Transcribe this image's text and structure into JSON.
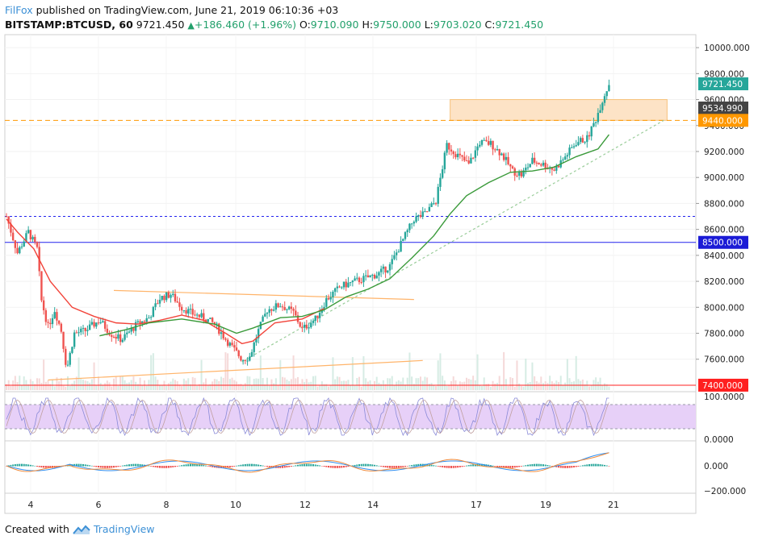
{
  "header": {
    "brand": "FilFox",
    "published": "published on TradingView.com, June 21, 2019 06:10:36 +03",
    "symbol": "BITSTAMP:BTCUSD, 60",
    "last": "9721.450",
    "change": "+186.460 (+1.96%)",
    "o_label": "O:",
    "o_value": "9710.090",
    "h_label": "H:",
    "h_value": "9750.000",
    "l_label": "L:",
    "l_value": "9703.020",
    "c_label": "C:",
    "c_value": "9721.450"
  },
  "footer": {
    "created_with": "Created with",
    "tradingview": "TradingView"
  },
  "colors": {
    "up": "#26a69a",
    "down": "#ef5350",
    "ma_red": "#f2443a",
    "ma_green": "#3a9a3a",
    "resistance_zone": "#fde3c6",
    "orange": "#ff9800",
    "blue_line": "#2222ee",
    "red_line": "#ff2a2a",
    "rsi_band": "#e7d0f8",
    "macd_blue": "#2f8ef0",
    "macd_orange": "#f08a3a"
  },
  "chart_data": {
    "type": "candlestick",
    "ylim": [
      7350,
      10100
    ],
    "y_ticks": [
      "10000.000",
      "9800.000",
      "9600.000",
      "9400.000",
      "9200.000",
      "9000.000",
      "8800.000",
      "8600.000",
      "8400.000",
      "8200.000",
      "8000.000",
      "7800.000",
      "7600.000"
    ],
    "x_ticks": [
      "4",
      "6",
      "8",
      "10",
      "12",
      "14",
      "17",
      "19",
      "21"
    ],
    "price_labels": [
      {
        "text": "9721.450",
        "value": 9721.45,
        "color": "#26a69a"
      },
      {
        "text": "9534.990",
        "value": 9534.99,
        "color": "#444444"
      },
      {
        "text": "9440.000",
        "value": 9440,
        "color": "#ff9800"
      },
      {
        "text": "8500.000",
        "value": 8500,
        "color": "#1b1bd6"
      },
      {
        "text": "7400.000",
        "value": 7400,
        "color": "#ff2020"
      }
    ],
    "ohlc_anchors": [
      [
        0,
        8700
      ],
      [
        10,
        8420
      ],
      [
        20,
        8580
      ],
      [
        28,
        8450
      ],
      [
        32,
        8050
      ],
      [
        38,
        7850
      ],
      [
        44,
        7980
      ],
      [
        50,
        7820
      ],
      [
        55,
        7520
      ],
      [
        62,
        7800
      ],
      [
        72,
        7820
      ],
      [
        85,
        7900
      ],
      [
        95,
        7800
      ],
      [
        105,
        7750
      ],
      [
        118,
        7860
      ],
      [
        130,
        7920
      ],
      [
        140,
        8070
      ],
      [
        150,
        8100
      ],
      [
        160,
        8000
      ],
      [
        170,
        7950
      ],
      [
        180,
        7920
      ],
      [
        190,
        7870
      ],
      [
        205,
        7700
      ],
      [
        215,
        7600
      ],
      [
        222,
        7620
      ],
      [
        230,
        7820
      ],
      [
        238,
        7980
      ],
      [
        250,
        8020
      ],
      [
        262,
        7960
      ],
      [
        270,
        7830
      ],
      [
        282,
        7910
      ],
      [
        292,
        8060
      ],
      [
        305,
        8160
      ],
      [
        318,
        8200
      ],
      [
        330,
        8230
      ],
      [
        340,
        8260
      ],
      [
        350,
        8320
      ],
      [
        362,
        8520
      ],
      [
        372,
        8680
      ],
      [
        382,
        8720
      ],
      [
        392,
        8820
      ],
      [
        402,
        9250
      ],
      [
        412,
        9170
      ],
      [
        422,
        9100
      ],
      [
        432,
        9270
      ],
      [
        442,
        9260
      ],
      [
        452,
        9180
      ],
      [
        462,
        9050
      ],
      [
        470,
        9020
      ],
      [
        480,
        9130
      ],
      [
        490,
        9100
      ],
      [
        500,
        9060
      ],
      [
        510,
        9160
      ],
      [
        520,
        9270
      ],
      [
        530,
        9300
      ],
      [
        538,
        9450
      ],
      [
        545,
        9620
      ],
      [
        550,
        9721
      ]
    ],
    "ma_red": [
      [
        0,
        8680
      ],
      [
        10,
        8580
      ],
      [
        25,
        8450
      ],
      [
        40,
        8200
      ],
      [
        60,
        8000
      ],
      [
        80,
        7930
      ],
      [
        100,
        7880
      ],
      [
        120,
        7870
      ],
      [
        140,
        7900
      ],
      [
        160,
        7940
      ],
      [
        180,
        7900
      ],
      [
        200,
        7800
      ],
      [
        215,
        7720
      ],
      [
        225,
        7740
      ],
      [
        245,
        7880
      ],
      [
        270,
        7910
      ],
      [
        290,
        7990
      ]
    ],
    "ma_green": [
      [
        85,
        7780
      ],
      [
        110,
        7830
      ],
      [
        130,
        7880
      ],
      [
        160,
        7910
      ],
      [
        190,
        7870
      ],
      [
        210,
        7800
      ],
      [
        225,
        7840
      ],
      [
        250,
        7920
      ],
      [
        270,
        7930
      ],
      [
        290,
        7980
      ],
      [
        310,
        8080
      ],
      [
        330,
        8140
      ],
      [
        350,
        8220
      ],
      [
        370,
        8380
      ],
      [
        390,
        8550
      ],
      [
        405,
        8720
      ],
      [
        420,
        8860
      ],
      [
        440,
        8960
      ],
      [
        460,
        9040
      ],
      [
        480,
        9050
      ],
      [
        500,
        9080
      ],
      [
        520,
        9160
      ],
      [
        540,
        9220
      ],
      [
        550,
        9330
      ]
    ],
    "resistance_zone": {
      "x0": 405,
      "x1": 603,
      "y0": 9440,
      "y1": 9600
    },
    "hlines": [
      {
        "value": 9440,
        "color": "#ff9800",
        "dash": true
      },
      {
        "value": 8500,
        "color": "#2222ee",
        "dash": false
      },
      {
        "value": 8700,
        "color": "#2222ee",
        "dash": true
      },
      {
        "value": 7400,
        "color": "#ff2020",
        "dash": false
      }
    ],
    "trendlines": [
      {
        "from": [
          98,
          8130
        ],
        "to": [
          372,
          8060
        ],
        "color": "#ffb46a",
        "dash": false
      },
      {
        "from": [
          38,
          7440
        ],
        "to": [
          380,
          7590
        ],
        "color": "#ffb46a",
        "dash": false
      },
      {
        "from": [
          215,
          7580
        ],
        "to": [
          600,
          9440
        ],
        "color": "#9acd9a",
        "dash": true
      }
    ],
    "rsi_ticks": [
      "100.0000",
      "0.0000"
    ],
    "macd_ticks": [
      "0.000",
      "−200.000"
    ]
  }
}
